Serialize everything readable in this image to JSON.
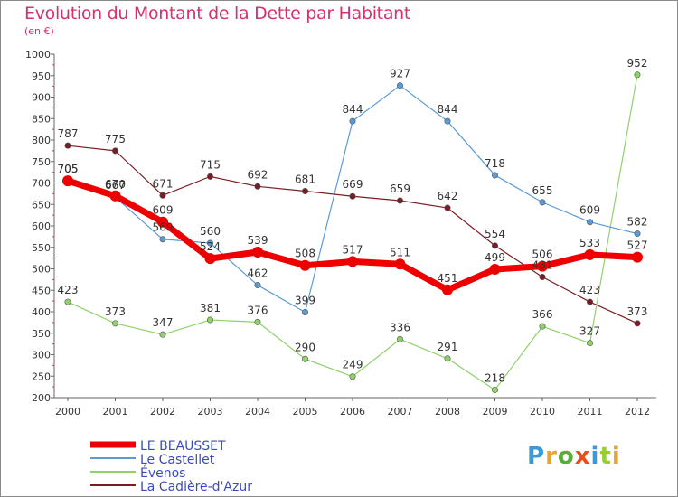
{
  "chart_data": {
    "type": "line",
    "title": "Evolution du Montant de la Dette par Habitant",
    "subtitle": "(en €)",
    "x": [
      "2000",
      "2001",
      "2002",
      "2003",
      "2004",
      "2005",
      "2006",
      "2007",
      "2008",
      "2009",
      "2010",
      "2011",
      "2012"
    ],
    "yticks": [
      200,
      250,
      300,
      350,
      400,
      450,
      500,
      550,
      600,
      650,
      700,
      750,
      800,
      850,
      900,
      950,
      1000
    ],
    "ylim": [
      200,
      1000
    ],
    "grid": false,
    "legend_position": "bottom-left",
    "series": [
      {
        "name": "LE BEAUSSET",
        "color": "#ee0000",
        "values": [
          705,
          670,
          609,
          524,
          539,
          508,
          517,
          511,
          451,
          499,
          506,
          533,
          527
        ],
        "labels": [
          "705",
          "670",
          "609",
          "524",
          "539",
          "508",
          "517",
          "511",
          "451",
          "499",
          "506",
          "533",
          "527"
        ]
      },
      {
        "name": "Le Castellet",
        "color": "#5b9bd5",
        "values": [
          705,
          667,
          569,
          560,
          462,
          399,
          844,
          927,
          844,
          718,
          655,
          609,
          582
        ],
        "labels": [
          "705",
          "667",
          "569",
          "560",
          "462",
          "399",
          "844",
          "927",
          "844",
          "718",
          "655",
          "609",
          "582"
        ]
      },
      {
        "name": "Évenos",
        "color": "#8fd16a",
        "values": [
          423,
          373,
          347,
          381,
          376,
          290,
          249,
          336,
          291,
          218,
          366,
          327,
          952
        ],
        "labels": [
          "423",
          "373",
          "347",
          "381",
          "376",
          "290",
          "249",
          "336",
          "291",
          "218",
          "366",
          "327",
          "952"
        ]
      },
      {
        "name": "La Cadière-d'Azur",
        "color": "#7b1c24",
        "values": [
          787,
          775,
          671,
          715,
          692,
          681,
          669,
          659,
          642,
          554,
          481,
          423,
          373
        ],
        "labels": [
          "787",
          "775",
          "671",
          "715",
          "692",
          "681",
          "669",
          "659",
          "642",
          "554",
          "481",
          "423",
          "373"
        ]
      }
    ]
  },
  "logo": {
    "text": "Proxiti"
  }
}
